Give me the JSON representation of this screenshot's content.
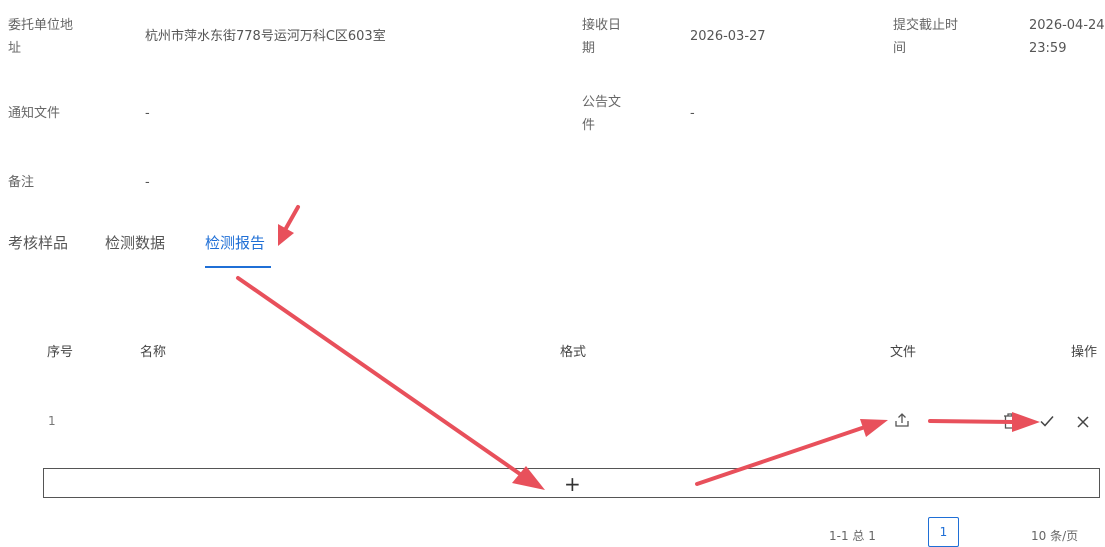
{
  "info": {
    "client_address_label_line1": "委托单位地",
    "client_address_label_line2": "址",
    "client_address_value": "杭州市萍水东街778号运河万科C区603室",
    "receive_date_label_line1": "接收日",
    "receive_date_label_line2": "期",
    "receive_date_value": "2026-03-27",
    "deadline_label_line1": "提交截止时",
    "deadline_label_line2": "间",
    "deadline_value_line1": "2026-04-24",
    "deadline_value_line2": "23:59",
    "notice_file_label": "通知文件",
    "notice_file_value": "-",
    "announcement_label_line1": "公告文",
    "announcement_label_line2": "件",
    "announcement_value": "-",
    "remarks_label": "备注",
    "remarks_value": "-"
  },
  "tabs": [
    {
      "label": "考核样品",
      "active": false
    },
    {
      "label": "检测数据",
      "active": false
    },
    {
      "label": "检测报告",
      "active": true
    }
  ],
  "table": {
    "headers": {
      "index": "序号",
      "name": "名称",
      "format": "格式",
      "file": "文件",
      "action": "操作"
    },
    "rows": [
      {
        "index": "1",
        "name": "",
        "format": ""
      }
    ],
    "add_label": "+"
  },
  "pagination": {
    "range_text": "1-1 总 1",
    "current_page": "1",
    "page_size": "10 条/页"
  },
  "icons": {
    "upload": "upload-icon",
    "delete": "trash-icon",
    "confirm": "check-icon",
    "cancel": "close-icon"
  },
  "colors": {
    "accent": "#1f6fd6",
    "annotation": "#e8505b"
  }
}
